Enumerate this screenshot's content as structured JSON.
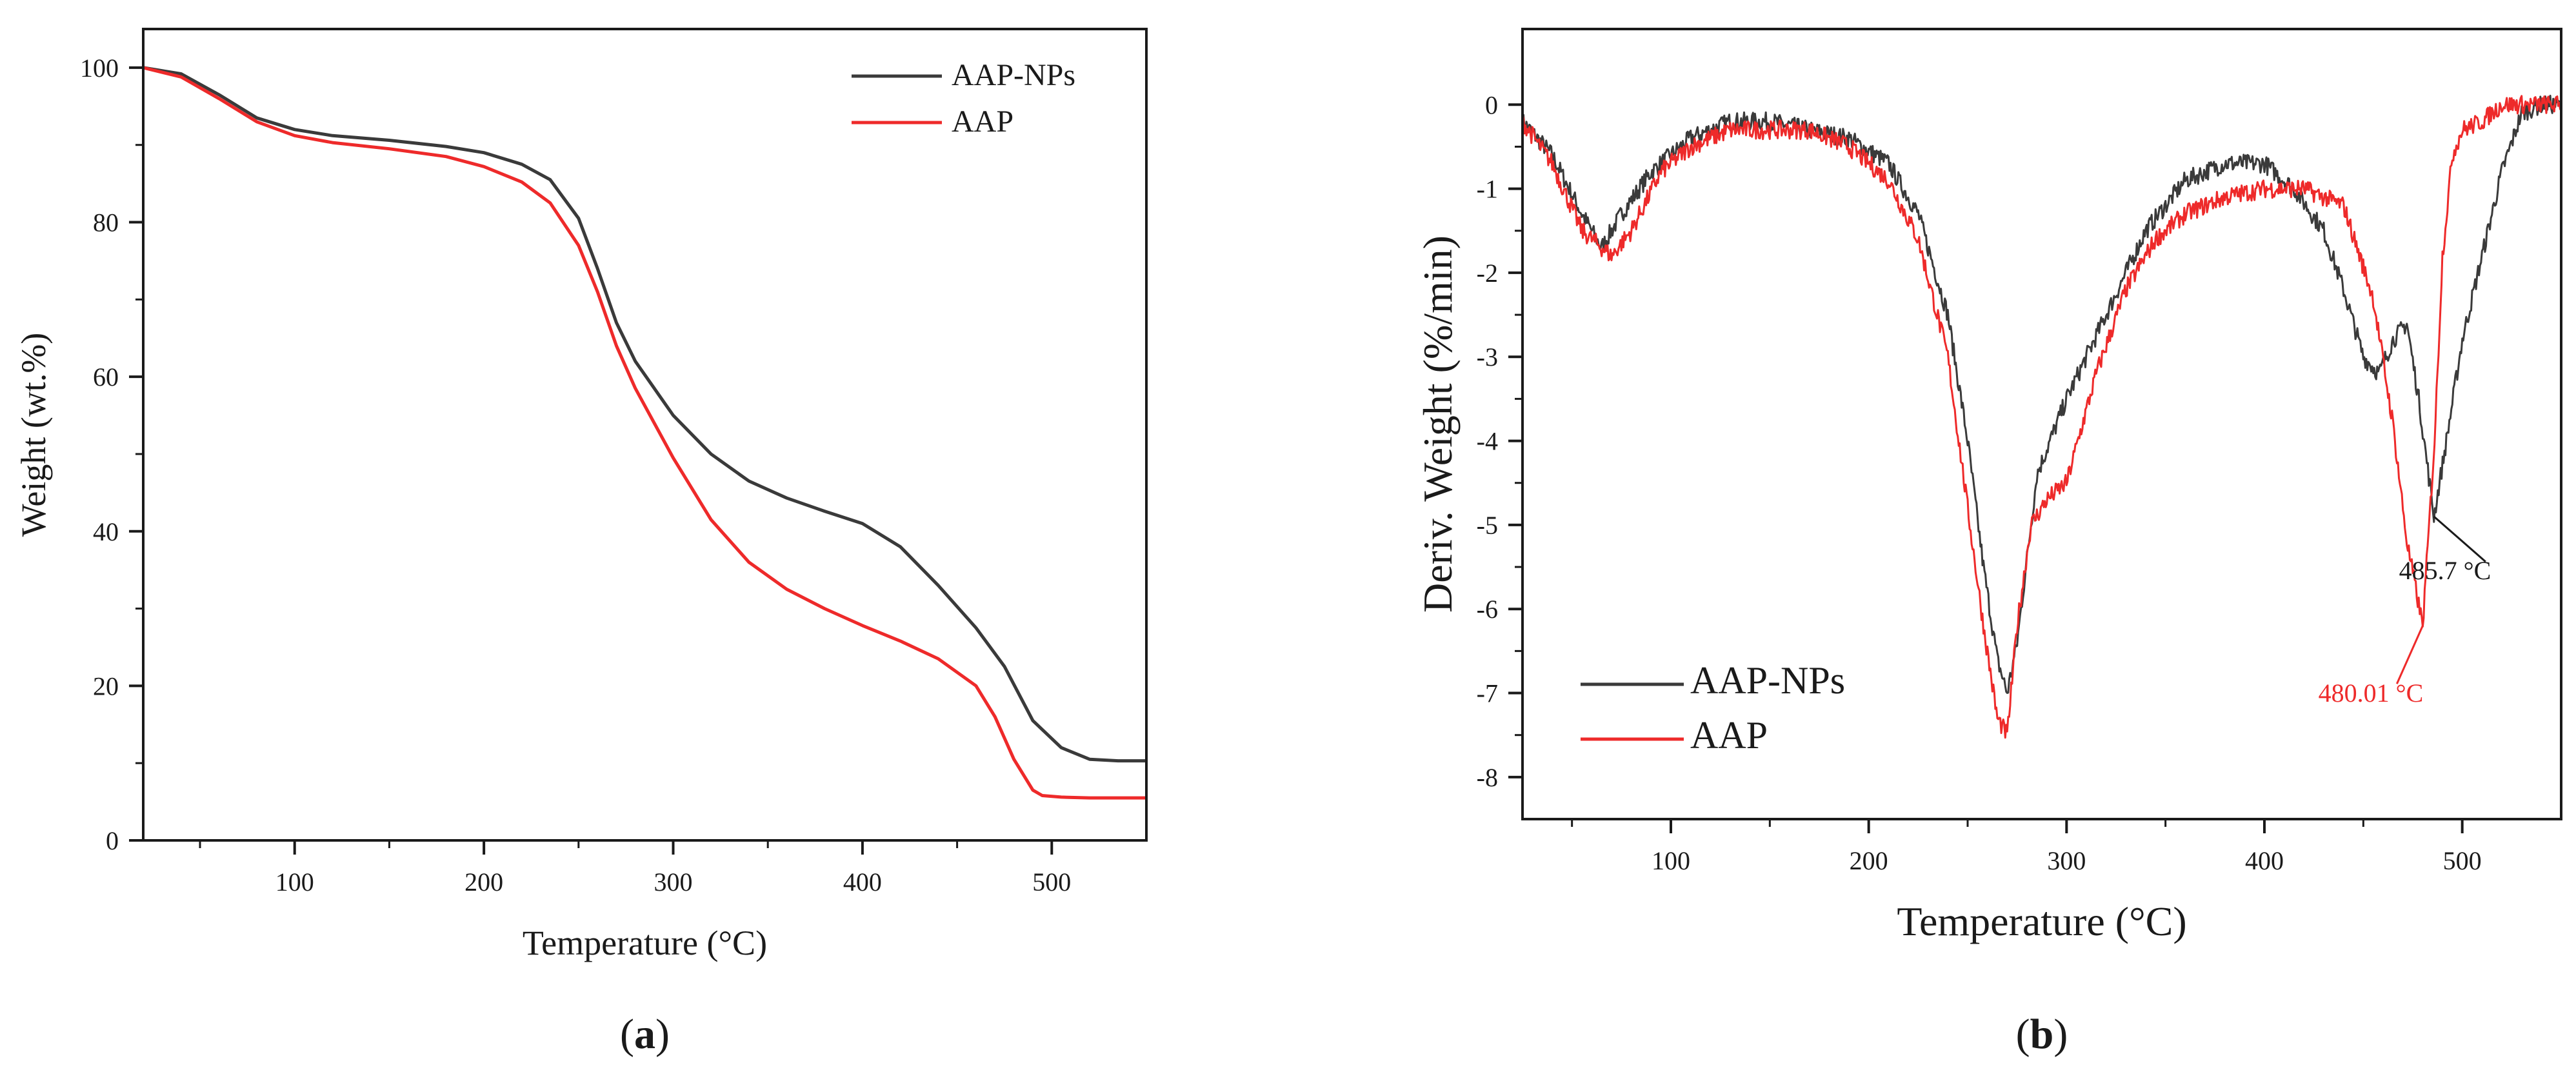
{
  "colors": {
    "AAP-NPs": "#3a3a3a",
    "AAP": "#ee2a2a",
    "axis": "#1a1a1a"
  },
  "chart_data": [
    {
      "id": "a",
      "type": "line",
      "panel_label": "a",
      "title": "",
      "xlabel": "Temperature (°C)",
      "ylabel": "Weight (wt.%)",
      "xlim": [
        20,
        550
      ],
      "ylim": [
        0,
        105
      ],
      "xticks": [
        100,
        200,
        300,
        400,
        500
      ],
      "yticks": [
        0,
        20,
        40,
        60,
        80,
        100
      ],
      "grid": false,
      "legend_position": "top-right",
      "series": [
        {
          "name": "AAP-NPs",
          "color": "#3a3a3a",
          "x": [
            20,
            40,
            60,
            80,
            100,
            120,
            150,
            180,
            200,
            220,
            235,
            250,
            260,
            270,
            280,
            300,
            320,
            340,
            360,
            380,
            400,
            420,
            440,
            460,
            475,
            490,
            505,
            520,
            535,
            550
          ],
          "y": [
            100,
            99.2,
            96.5,
            93.5,
            92,
            91.2,
            90.6,
            89.8,
            89,
            87.5,
            85.5,
            80.5,
            74,
            67,
            62,
            55,
            50,
            46.5,
            44.3,
            42.6,
            41,
            38,
            33,
            27.5,
            22.5,
            15.5,
            12,
            10.5,
            10.3,
            10.3
          ]
        },
        {
          "name": "AAP",
          "color": "#ee2a2a",
          "x": [
            20,
            40,
            60,
            80,
            100,
            120,
            150,
            180,
            200,
            220,
            235,
            250,
            260,
            270,
            280,
            300,
            320,
            340,
            360,
            380,
            400,
            420,
            440,
            460,
            470,
            480,
            490,
            495,
            505,
            520,
            550
          ],
          "y": [
            100,
            98.8,
            96,
            93,
            91.2,
            90.3,
            89.5,
            88.5,
            87.2,
            85.2,
            82.5,
            77,
            71,
            64,
            58.5,
            49.5,
            41.5,
            36,
            32.5,
            30,
            27.8,
            25.8,
            23.5,
            20,
            16,
            10.5,
            6.5,
            5.8,
            5.6,
            5.5,
            5.5
          ]
        }
      ]
    },
    {
      "id": "b",
      "type": "line",
      "panel_label": "b",
      "title": "",
      "xlabel": "Temperature (°C)",
      "ylabel": "Deriv. Weight (%/min)",
      "xlim": [
        25,
        550
      ],
      "ylim": [
        -8.5,
        0.9
      ],
      "xticks": [
        100,
        200,
        300,
        400,
        500
      ],
      "yticks": [
        0,
        -1,
        -2,
        -3,
        -4,
        -5,
        -6,
        -7,
        -8
      ],
      "grid": false,
      "legend_position": "bottom-left",
      "series": [
        {
          "name": "AAP-NPs",
          "color": "#3a3a3a",
          "x": [
            25,
            40,
            55,
            65,
            75,
            90,
            110,
            130,
            150,
            170,
            190,
            210,
            225,
            240,
            250,
            258,
            265,
            270,
            275,
            285,
            300,
            320,
            340,
            360,
            380,
            400,
            415,
            430,
            440,
            450,
            458,
            465,
            472,
            478,
            485.7,
            492,
            500,
            510,
            520,
            530,
            540,
            550
          ],
          "y": [
            -0.2,
            -0.6,
            -1.3,
            -1.7,
            -1.3,
            -0.8,
            -0.4,
            -0.2,
            -0.2,
            -0.3,
            -0.4,
            -0.7,
            -1.3,
            -2.5,
            -4.0,
            -5.5,
            -6.6,
            -7.0,
            -6.4,
            -4.4,
            -3.5,
            -2.5,
            -1.5,
            -0.9,
            -0.7,
            -0.7,
            -1.0,
            -1.5,
            -2.2,
            -3.0,
            -3.2,
            -2.8,
            -2.6,
            -3.5,
            -4.9,
            -4.0,
            -2.8,
            -1.8,
            -0.8,
            -0.1,
            0.0,
            0.0
          ]
        },
        {
          "name": "AAP",
          "color": "#ee2a2a",
          "x": [
            25,
            40,
            55,
            70,
            80,
            95,
            110,
            130,
            150,
            170,
            190,
            210,
            225,
            240,
            250,
            258,
            265,
            270,
            275,
            282,
            290,
            300,
            315,
            330,
            345,
            360,
            380,
            400,
            420,
            440,
            455,
            465,
            472,
            480.01,
            486,
            490,
            495,
            500,
            510,
            520,
            530,
            540,
            550
          ],
          "y": [
            -0.2,
            -0.7,
            -1.5,
            -1.8,
            -1.5,
            -0.8,
            -0.5,
            -0.3,
            -0.3,
            -0.3,
            -0.5,
            -0.9,
            -1.6,
            -3.0,
            -4.8,
            -6.2,
            -7.3,
            -7.5,
            -6.2,
            -5.0,
            -4.7,
            -4.5,
            -3.2,
            -2.2,
            -1.6,
            -1.3,
            -1.1,
            -1.0,
            -1.0,
            -1.2,
            -2.3,
            -3.8,
            -5.2,
            -6.2,
            -4.0,
            -1.8,
            -0.6,
            -0.3,
            -0.2,
            0.0,
            0.0,
            0.0,
            0.0
          ]
        }
      ],
      "annotations": [
        {
          "series": "AAP-NPs",
          "x": 485.7,
          "y": -4.9,
          "label": "485.7 °C",
          "color": "#1a1a1a"
        },
        {
          "series": "AAP",
          "x": 480.01,
          "y": -6.2,
          "label": "480.01 °C",
          "color": "#ee2a2a"
        }
      ]
    }
  ]
}
